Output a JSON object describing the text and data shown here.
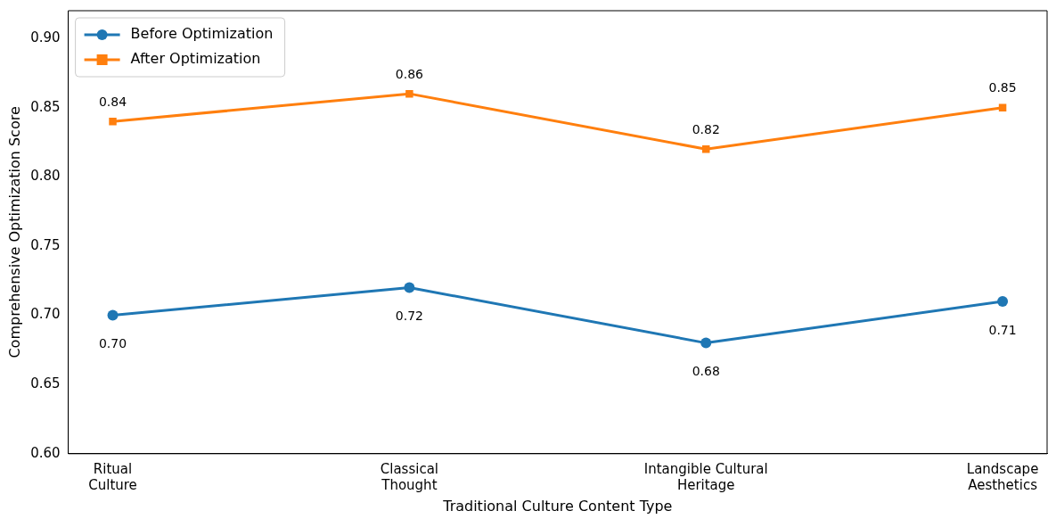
{
  "chart_data": {
    "type": "line",
    "xlabel": "Traditional Culture Content Type",
    "ylabel": "Comprehensive Optimization Score",
    "categories": [
      "Ritual\nCulture",
      "Classical\nThought",
      "Intangible Cultural\nHeritage",
      "Landscape\nAesthetics"
    ],
    "series": [
      {
        "name": "Before Optimization",
        "color": "#1f77b4",
        "marker": "circle",
        "values": [
          0.7,
          0.72,
          0.68,
          0.71
        ],
        "value_labels": [
          "0.70",
          "0.72",
          "0.68",
          "0.71"
        ]
      },
      {
        "name": "After Optimization",
        "color": "#ff7f0e",
        "marker": "square",
        "values": [
          0.84,
          0.86,
          0.82,
          0.85
        ],
        "value_labels": [
          "0.84",
          "0.86",
          "0.82",
          "0.85"
        ]
      }
    ],
    "ylim": [
      0.6,
      0.92
    ],
    "yticks": [
      {
        "value": 0.6,
        "label": "0.60"
      },
      {
        "value": 0.65,
        "label": "0.65"
      },
      {
        "value": 0.7,
        "label": "0.70"
      },
      {
        "value": 0.75,
        "label": "0.75"
      },
      {
        "value": 0.8,
        "label": "0.80"
      },
      {
        "value": 0.85,
        "label": "0.85"
      },
      {
        "value": 0.9,
        "label": "0.90"
      }
    ],
    "legend": "top left",
    "grid": false,
    "line_style": "solid"
  }
}
